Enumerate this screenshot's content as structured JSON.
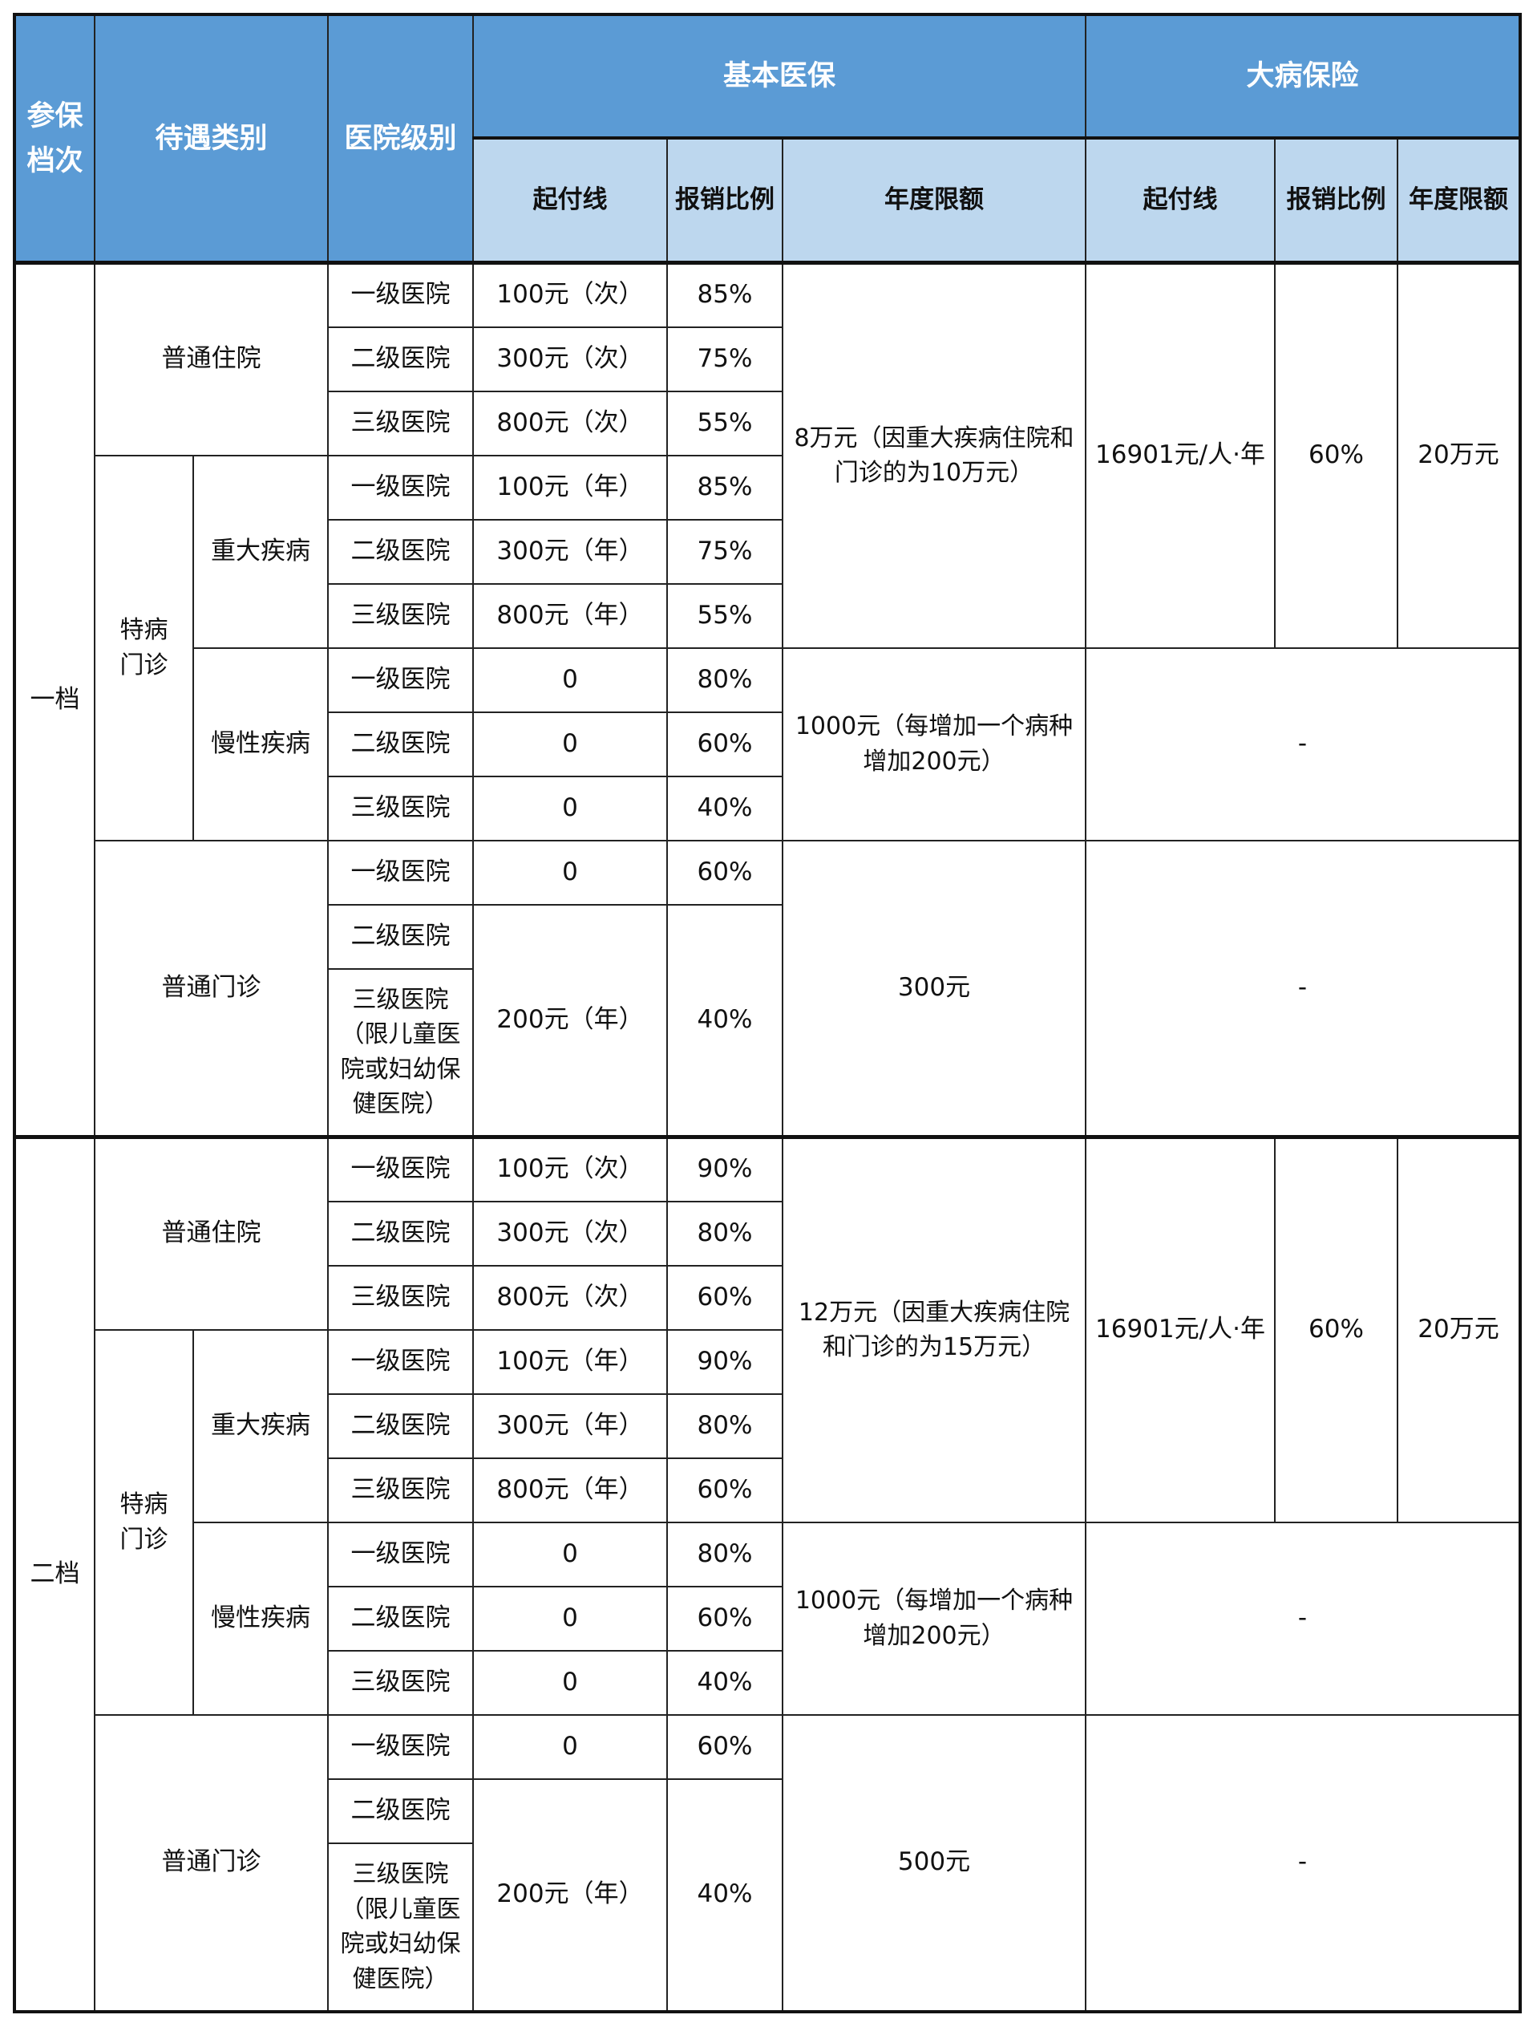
{
  "header": {
    "tier": "参保档次",
    "category": "待遇类别",
    "hospital_level": "医院级别",
    "basic": "基本医保",
    "critical": "大病保险",
    "sub": {
      "deductible": "起付线",
      "ratio": "报销比例",
      "annual_limit": "年度限额"
    }
  },
  "colors": {
    "header_dark": "#5b9bd5",
    "header_light": "#bdd7ee"
  },
  "tiers": [
    {
      "label": "一档",
      "inpatient": {
        "label": "普通住院",
        "rows": [
          {
            "level": "一级医院",
            "deductible": "100元（次）",
            "ratio": "85%"
          },
          {
            "level": "二级医院",
            "deductible": "300元（次）",
            "ratio": "75%"
          },
          {
            "level": "三级医院",
            "deductible": "800元（次）",
            "ratio": "55%"
          }
        ]
      },
      "special_label": "特病门诊",
      "major": {
        "label": "重大疾病",
        "rows": [
          {
            "level": "一级医院",
            "deductible": "100元（年）",
            "ratio": "85%"
          },
          {
            "level": "二级医院",
            "deductible": "300元（年）",
            "ratio": "75%"
          },
          {
            "level": "三级医院",
            "deductible": "800元（年）",
            "ratio": "55%"
          }
        ]
      },
      "chronic": {
        "label": "慢性疾病",
        "rows": [
          {
            "level": "一级医院",
            "deductible": "0",
            "ratio": "80%"
          },
          {
            "level": "二级医院",
            "deductible": "0",
            "ratio": "60%"
          },
          {
            "level": "三级医院",
            "deductible": "0",
            "ratio": "40%"
          }
        ],
        "annual_limit": "1000元（每增加一个病种增加200元）",
        "critical": "-"
      },
      "basic_annual_limit": "8万元（因重大疾病住院和门诊的为10万元）",
      "critical": {
        "deductible": "16901元/人·年",
        "ratio": "60%",
        "annual_limit": "20万元"
      },
      "outpatient": {
        "label": "普通门诊",
        "row1": {
          "level": "一级医院",
          "deductible": "0",
          "ratio": "60%"
        },
        "row2_level": "二级医院",
        "row3_level": "三级医院（限儿童医院或妇幼保健医院）",
        "deductible_merged": "200元（年）",
        "ratio_merged": "40%",
        "annual_limit": "300元",
        "critical": "-"
      }
    },
    {
      "label": "二档",
      "inpatient": {
        "label": "普通住院",
        "rows": [
          {
            "level": "一级医院",
            "deductible": "100元（次）",
            "ratio": "90%"
          },
          {
            "level": "二级医院",
            "deductible": "300元（次）",
            "ratio": "80%"
          },
          {
            "level": "三级医院",
            "deductible": "800元（次）",
            "ratio": "60%"
          }
        ]
      },
      "special_label": "特病门诊",
      "major": {
        "label": "重大疾病",
        "rows": [
          {
            "level": "一级医院",
            "deductible": "100元（年）",
            "ratio": "90%"
          },
          {
            "level": "二级医院",
            "deductible": "300元（年）",
            "ratio": "80%"
          },
          {
            "level": "三级医院",
            "deductible": "800元（年）",
            "ratio": "60%"
          }
        ]
      },
      "chronic": {
        "label": "慢性疾病",
        "rows": [
          {
            "level": "一级医院",
            "deductible": "0",
            "ratio": "80%"
          },
          {
            "level": "二级医院",
            "deductible": "0",
            "ratio": "60%"
          },
          {
            "level": "三级医院",
            "deductible": "0",
            "ratio": "40%"
          }
        ],
        "annual_limit": "1000元（每增加一个病种增加200元）",
        "critical": "-"
      },
      "basic_annual_limit": "12万元（因重大疾病住院和门诊的为15万元）",
      "critical": {
        "deductible": "16901元/人·年",
        "ratio": "60%",
        "annual_limit": "20万元"
      },
      "outpatient": {
        "label": "普通门诊",
        "row1": {
          "level": "一级医院",
          "deductible": "0",
          "ratio": "60%"
        },
        "row2_level": "二级医院",
        "row3_level": "三级医院（限儿童医院或妇幼保健医院）",
        "deductible_merged": "200元（年）",
        "ratio_merged": "40%",
        "annual_limit": "500元",
        "critical": "-"
      }
    }
  ]
}
